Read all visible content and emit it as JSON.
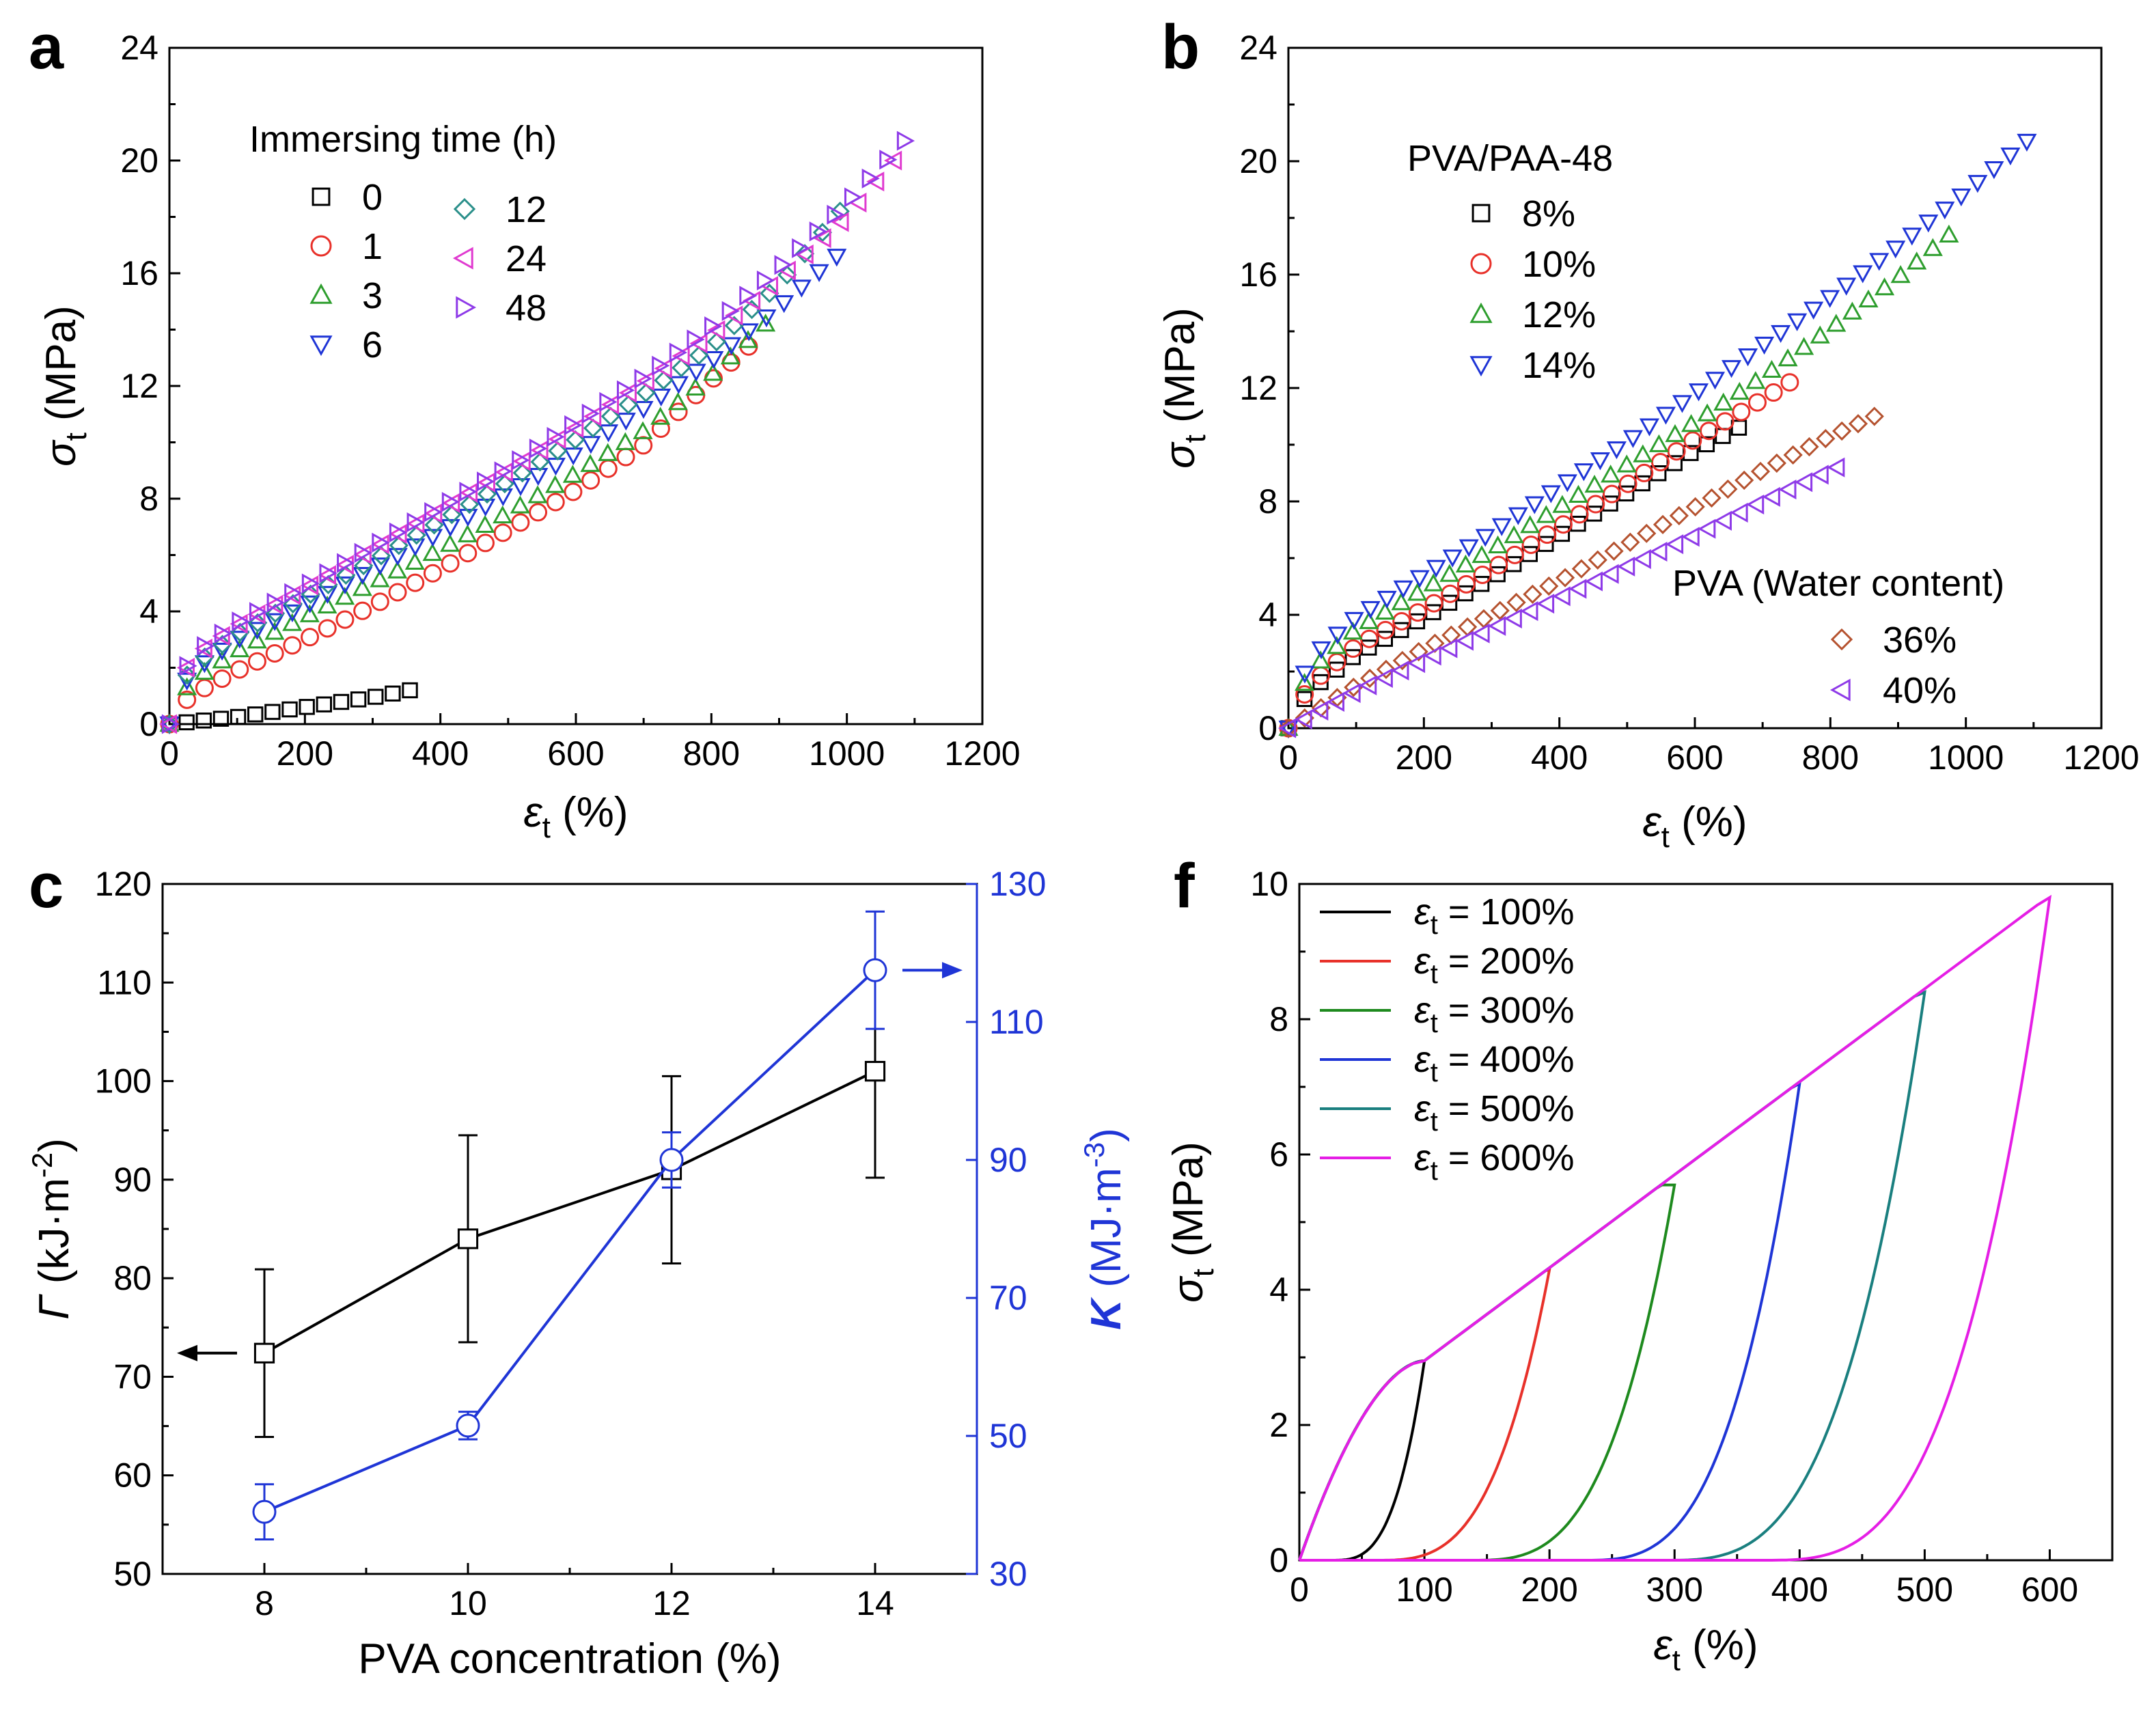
{
  "panels": [
    {
      "id": "a",
      "letter": "a",
      "xlabel": "ε_t (%)",
      "ylabel": "σ_t (MPa)",
      "xlim": [
        0,
        1200
      ],
      "ylim": [
        0,
        24
      ],
      "xticks": [
        0,
        200,
        400,
        600,
        800,
        1000,
        1200
      ],
      "yticks": [
        0,
        4,
        8,
        12,
        16,
        20,
        24
      ],
      "legend_title": "Immersing time (h)",
      "series": [
        {
          "name": "0",
          "marker": "square",
          "color": "#000000",
          "x_end": 355,
          "y_end": 1.2,
          "shape": [
            [
              0,
              0
            ],
            [
              100,
              0.25
            ],
            [
              200,
              0.6
            ],
            [
              300,
              0.95
            ],
            [
              355,
              1.2
            ]
          ]
        },
        {
          "name": "1",
          "marker": "circle",
          "color": "#e8312a",
          "x_end": 855,
          "y_end": 13.4,
          "shape": [
            [
              0,
              0
            ],
            [
              30,
              1.0
            ],
            [
              100,
              1.9
            ],
            [
              200,
              3.0
            ],
            [
              300,
              4.2
            ],
            [
              400,
              5.5
            ],
            [
              500,
              6.9
            ],
            [
              600,
              8.3
            ],
            [
              700,
              9.9
            ],
            [
              800,
              12.2
            ],
            [
              855,
              13.4
            ]
          ]
        },
        {
          "name": "3",
          "marker": "triangle-up",
          "color": "#2e9e2e",
          "x_end": 880,
          "y_end": 14.2,
          "shape": [
            [
              0,
              0
            ],
            [
              30,
              1.5
            ],
            [
              100,
              2.6
            ],
            [
              200,
              3.8
            ],
            [
              300,
              5.0
            ],
            [
              400,
              6.2
            ],
            [
              500,
              7.5
            ],
            [
              600,
              8.9
            ],
            [
              700,
              10.4
            ],
            [
              800,
              12.4
            ],
            [
              880,
              14.2
            ]
          ]
        },
        {
          "name": "6",
          "marker": "triangle-down",
          "color": "#1f35d6",
          "x_end": 985,
          "y_end": 16.6,
          "shape": [
            [
              0,
              0
            ],
            [
              30,
              1.8
            ],
            [
              100,
              3.0
            ],
            [
              200,
              4.2
            ],
            [
              300,
              5.5
            ],
            [
              400,
              6.8
            ],
            [
              500,
              8.2
            ],
            [
              600,
              9.6
            ],
            [
              700,
              11.2
            ],
            [
              800,
              12.9
            ],
            [
              900,
              14.8
            ],
            [
              985,
              16.6
            ]
          ]
        },
        {
          "name": "12",
          "marker": "diamond",
          "color": "#2a8f8a",
          "x_end": 990,
          "y_end": 18.2,
          "shape": [
            [
              0,
              0
            ],
            [
              30,
              2.0
            ],
            [
              100,
              3.2
            ],
            [
              200,
              4.5
            ],
            [
              300,
              5.8
            ],
            [
              400,
              7.2
            ],
            [
              500,
              8.6
            ],
            [
              600,
              10.1
            ],
            [
              700,
              11.7
            ],
            [
              800,
              13.4
            ],
            [
              900,
              15.6
            ],
            [
              990,
              18.2
            ]
          ]
        },
        {
          "name": "24",
          "marker": "triangle-left",
          "color": "#e03ad0",
          "x_end": 1070,
          "y_end": 20.0,
          "shape": [
            [
              0,
              0
            ],
            [
              30,
              2.3
            ],
            [
              100,
              3.5
            ],
            [
              200,
              4.8
            ],
            [
              300,
              6.2
            ],
            [
              400,
              7.6
            ],
            [
              500,
              9.0
            ],
            [
              600,
              10.5
            ],
            [
              700,
              12.1
            ],
            [
              800,
              13.8
            ],
            [
              900,
              15.8
            ],
            [
              1000,
              18.0
            ],
            [
              1070,
              20.0
            ]
          ]
        },
        {
          "name": "48",
          "marker": "triangle-right",
          "color": "#8e3ae8",
          "x_end": 1085,
          "y_end": 20.7,
          "shape": [
            [
              0,
              0
            ],
            [
              30,
              2.4
            ],
            [
              100,
              3.6
            ],
            [
              200,
              4.9
            ],
            [
              300,
              6.3
            ],
            [
              400,
              7.7
            ],
            [
              500,
              9.1
            ],
            [
              600,
              10.7
            ],
            [
              700,
              12.3
            ],
            [
              800,
              14.1
            ],
            [
              900,
              16.2
            ],
            [
              1000,
              18.5
            ],
            [
              1085,
              20.7
            ]
          ]
        }
      ]
    },
    {
      "id": "b",
      "letter": "b",
      "xlabel": "ε_t (%)",
      "ylabel": "σ_t (MPa)",
      "xlim": [
        0,
        1200
      ],
      "ylim": [
        0,
        24
      ],
      "xticks": [
        0,
        200,
        400,
        600,
        800,
        1000,
        1200
      ],
      "yticks": [
        0,
        4,
        8,
        12,
        16,
        20,
        24
      ],
      "legend_title": "PVA/PAA-48",
      "legend2_title": "PVA (Water content)",
      "series": [
        {
          "name": "8%",
          "marker": "square",
          "color": "#000000",
          "x_end": 665,
          "y_end": 10.6,
          "shape": [
            [
              0,
              0
            ],
            [
              30,
              1.3
            ],
            [
              100,
              2.6
            ],
            [
              200,
              3.9
            ],
            [
              300,
              5.3
            ],
            [
              400,
              6.8
            ],
            [
              500,
              8.3
            ],
            [
              600,
              9.8
            ],
            [
              665,
              10.6
            ]
          ]
        },
        {
          "name": "10%",
          "marker": "circle",
          "color": "#e8312a",
          "x_end": 740,
          "y_end": 12.2,
          "shape": [
            [
              0,
              0
            ],
            [
              30,
              1.5
            ],
            [
              100,
              2.9
            ],
            [
              200,
              4.2
            ],
            [
              300,
              5.6
            ],
            [
              400,
              7.1
            ],
            [
              500,
              8.6
            ],
            [
              600,
              10.2
            ],
            [
              700,
              11.6
            ],
            [
              740,
              12.2
            ]
          ]
        },
        {
          "name": "12%",
          "marker": "triangle-up",
          "color": "#2e9e2e",
          "x_end": 975,
          "y_end": 17.4,
          "shape": [
            [
              0,
              0
            ],
            [
              30,
              2.0
            ],
            [
              100,
              3.5
            ],
            [
              200,
              4.9
            ],
            [
              300,
              6.3
            ],
            [
              400,
              7.8
            ],
            [
              500,
              9.3
            ],
            [
              600,
              10.8
            ],
            [
              700,
              12.4
            ],
            [
              800,
              14.1
            ],
            [
              900,
              15.9
            ],
            [
              975,
              17.4
            ]
          ]
        },
        {
          "name": "14%",
          "marker": "triangle-down",
          "color": "#1f35d6",
          "x_end": 1090,
          "y_end": 20.7,
          "shape": [
            [
              0,
              0
            ],
            [
              30,
              2.4
            ],
            [
              100,
              3.9
            ],
            [
              200,
              5.4
            ],
            [
              300,
              6.9
            ],
            [
              400,
              8.5
            ],
            [
              500,
              10.1
            ],
            [
              600,
              11.8
            ],
            [
              700,
              13.5
            ],
            [
              800,
              15.2
            ],
            [
              900,
              17.0
            ],
            [
              1000,
              18.9
            ],
            [
              1090,
              20.7
            ]
          ]
        },
        {
          "name": "36%",
          "marker": "diamond",
          "color": "#b5522f",
          "x_end": 865,
          "y_end": 11.0,
          "group": 2,
          "shape": [
            [
              0,
              0
            ],
            [
              100,
              1.5
            ],
            [
              200,
              2.8
            ],
            [
              300,
              4.0
            ],
            [
              400,
              5.2
            ],
            [
              500,
              6.5
            ],
            [
              600,
              7.8
            ],
            [
              700,
              9.1
            ],
            [
              800,
              10.3
            ],
            [
              865,
              11.0
            ]
          ]
        },
        {
          "name": "40%",
          "marker": "triangle-left",
          "color": "#8e3ae8",
          "x_end": 810,
          "y_end": 9.2,
          "group": 2,
          "shape": [
            [
              0,
              0
            ],
            [
              100,
              1.3
            ],
            [
              200,
              2.4
            ],
            [
              300,
              3.5
            ],
            [
              400,
              4.6
            ],
            [
              500,
              5.7
            ],
            [
              600,
              6.8
            ],
            [
              700,
              8.0
            ],
            [
              810,
              9.2
            ]
          ]
        }
      ]
    },
    {
      "id": "c",
      "letter": "c",
      "xlabel": "PVA concentration  (%)",
      "ylabel": "Γ (kJ·m⁻²)",
      "y2label": "K (MJ·m⁻³)",
      "xlim": [
        7,
        15
      ],
      "ylim": [
        50,
        120
      ],
      "y2lim": [
        30,
        130
      ],
      "xticks": [
        8,
        10,
        12,
        14
      ],
      "yticks": [
        50,
        60,
        70,
        80,
        90,
        100,
        110,
        120
      ],
      "y2ticks": [
        30,
        50,
        70,
        90,
        110,
        130
      ],
      "series": [
        {
          "name": "Γ",
          "axis": "left",
          "marker": "square",
          "color": "#000000",
          "x": [
            8,
            10,
            12,
            14
          ],
          "y": [
            72.4,
            84.0,
            91.0,
            101.0
          ],
          "err": [
            8.5,
            10.5,
            9.5,
            10.8
          ]
        },
        {
          "name": "K",
          "axis": "right",
          "marker": "circle",
          "color": "#1f35d6",
          "x": [
            8,
            10,
            12,
            14
          ],
          "y": [
            39.0,
            51.5,
            90.0,
            117.5
          ],
          "err": [
            4.0,
            2.0,
            4.0,
            8.5
          ]
        }
      ]
    },
    {
      "id": "f",
      "letter": "f",
      "xlabel": "ε_t (%)",
      "ylabel": "σ_t (MPa)",
      "xlim": [
        0,
        650
      ],
      "ylim": [
        0,
        10
      ],
      "xticks": [
        0,
        100,
        200,
        300,
        400,
        500,
        600
      ],
      "yticks": [
        0,
        2,
        4,
        6,
        8,
        10
      ],
      "series": [
        {
          "name": "ε_t = 100%",
          "label_value": "= 100%",
          "color": "#000000",
          "x_max": 100,
          "y_max": 2.95,
          "x_res": 25
        },
        {
          "name": "ε_t = 200%",
          "label_value": "= 200%",
          "color": "#e8312a",
          "x_max": 200,
          "y_max": 4.3,
          "x_res": 60
        },
        {
          "name": "ε_t = 300%",
          "label_value": "= 300%",
          "color": "#1e8a1e",
          "x_max": 300,
          "y_max": 5.55,
          "x_res": 135
        },
        {
          "name": "ε_t = 400%",
          "label_value": "= 400%",
          "color": "#1f35d6",
          "x_max": 400,
          "y_max": 7.05,
          "x_res": 225
        },
        {
          "name": "ε_t = 500%",
          "label_value": "= 500%",
          "color": "#1a7f7f",
          "x_max": 500,
          "y_max": 8.4,
          "x_res": 290
        },
        {
          "name": "ε_t = 600%",
          "label_value": "= 600%",
          "color": "#e51ee5",
          "x_max": 600,
          "y_max": 9.8,
          "x_res": 370
        }
      ]
    }
  ]
}
